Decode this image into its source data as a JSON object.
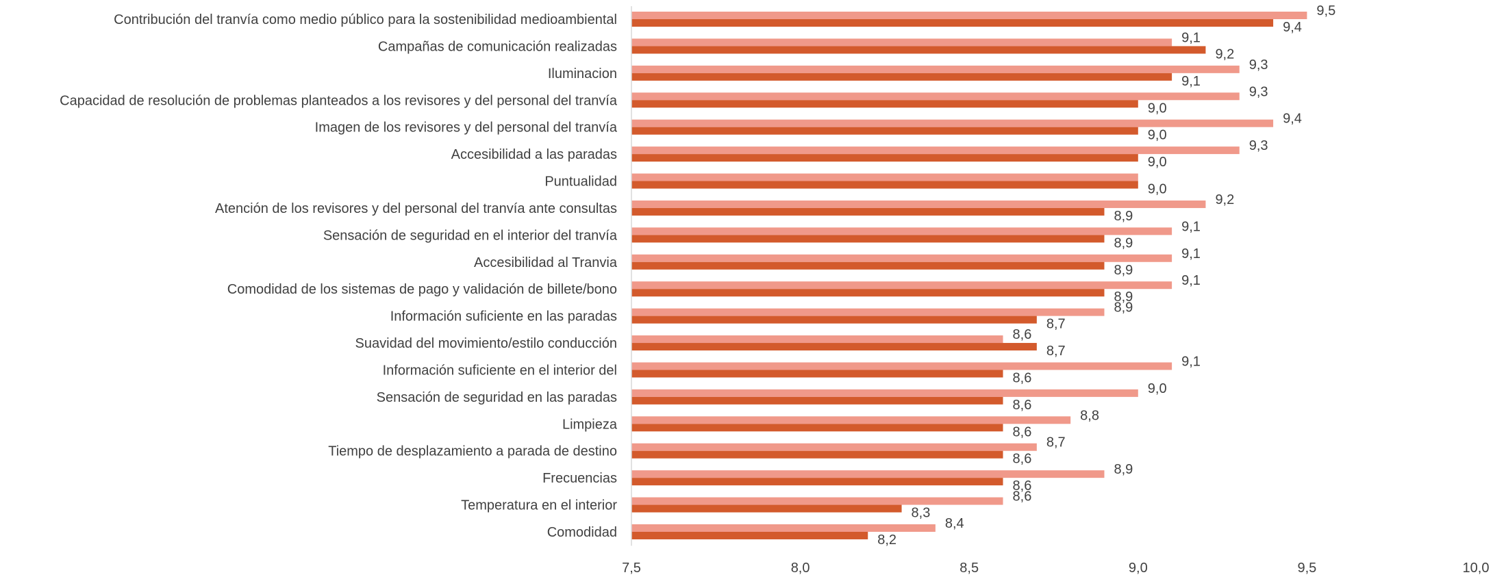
{
  "chart_data": {
    "type": "bar",
    "orientation": "horizontal",
    "categories": [
      "Contribución del tranvía como medio público para la sostenibilidad medioambiental",
      "Campañas de comunicación realizadas",
      "Iluminacion",
      "Capacidad de resolución de problemas planteados a los revisores y del personal del tranvía",
      "Imagen de los revisores y del personal del tranvía",
      "Accesibilidad a las paradas",
      "Puntualidad",
      "Atención de los revisores y del personal del tranvía ante consultas",
      "Sensación de seguridad en el interior del tranvía",
      "Accesibilidad al Tranvia",
      "Comodidad de los sistemas de pago y validación de billete/bono",
      "Información suficiente en las paradas",
      "Suavidad del movimiento/estilo conducción",
      "Información suficiente en el interior del",
      "Sensación de seguridad en las paradas",
      "Limpieza",
      "Tiempo de desplazamiento a parada de destino",
      "Frecuencias",
      "Temperatura en el interior",
      "Comodidad"
    ],
    "series": [
      {
        "color": "#f0998a",
        "values": [
          9.5,
          9.1,
          9.3,
          9.3,
          9.4,
          9.3,
          9.0,
          9.2,
          9.1,
          9.1,
          9.1,
          8.9,
          8.6,
          9.1,
          9.0,
          8.8,
          8.7,
          8.9,
          8.6,
          8.4
        ],
        "labels": [
          "9,5",
          "9,1",
          "9,3",
          "9,3",
          "9,4",
          "9,3",
          "",
          "9,2",
          "9,1",
          "9,1",
          "9,1",
          "8,9",
          "8,6",
          "9,1",
          "9,0",
          "8,8",
          "8,7",
          "8,9",
          "8,6",
          "8,4"
        ]
      },
      {
        "color": "#d35a2c",
        "values": [
          9.4,
          9.2,
          9.1,
          9.0,
          9.0,
          9.0,
          9.0,
          8.9,
          8.9,
          8.9,
          8.9,
          8.7,
          8.7,
          8.6,
          8.6,
          8.6,
          8.6,
          8.6,
          8.3,
          8.2
        ],
        "labels": [
          "9,4",
          "9,2",
          "9,1",
          "9,0",
          "9,0",
          "9,0",
          "9,0",
          "8,9",
          "8,9",
          "8,9",
          "8,9",
          "8,7",
          "8,7",
          "8,6",
          "8,6",
          "8,6",
          "8,6",
          "8,6",
          "8,3",
          "8,2"
        ]
      }
    ],
    "xlim": [
      7.5,
      10.0
    ],
    "ticks": [
      7.5,
      8.0,
      8.5,
      9.0,
      9.5,
      10.0
    ],
    "tick_labels": [
      "7,5",
      "8,0",
      "8,5",
      "9,0",
      "9,5",
      "10,0"
    ],
    "title": "",
    "xlabel": "",
    "ylabel": "",
    "grid": false,
    "legend": "none"
  }
}
